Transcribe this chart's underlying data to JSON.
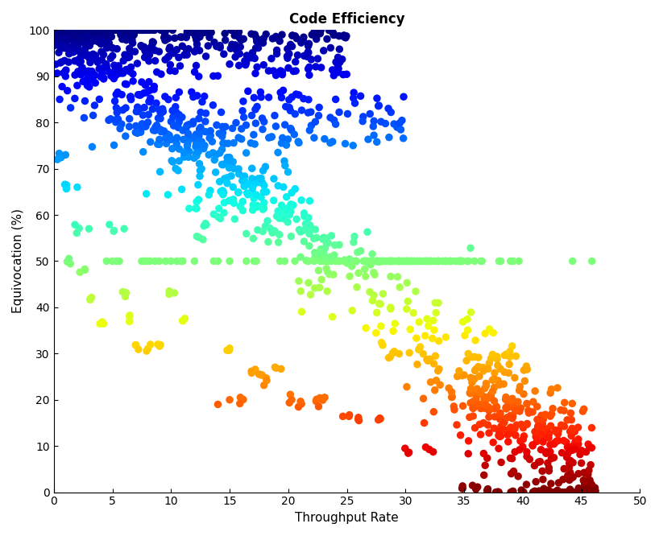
{
  "title": "Code Efficiency",
  "xlabel": "Throughput Rate",
  "ylabel": "Equivocation (%)",
  "xlim": [
    0,
    50
  ],
  "ylim": [
    0,
    100
  ],
  "xticks": [
    0,
    5,
    10,
    15,
    20,
    25,
    30,
    35,
    40,
    45,
    50
  ],
  "yticks": [
    0,
    10,
    20,
    30,
    40,
    50,
    60,
    70,
    80,
    90,
    100
  ],
  "marker_size": 5.5,
  "linewidth": 1.3,
  "seed": 42,
  "background": "#ffffff"
}
